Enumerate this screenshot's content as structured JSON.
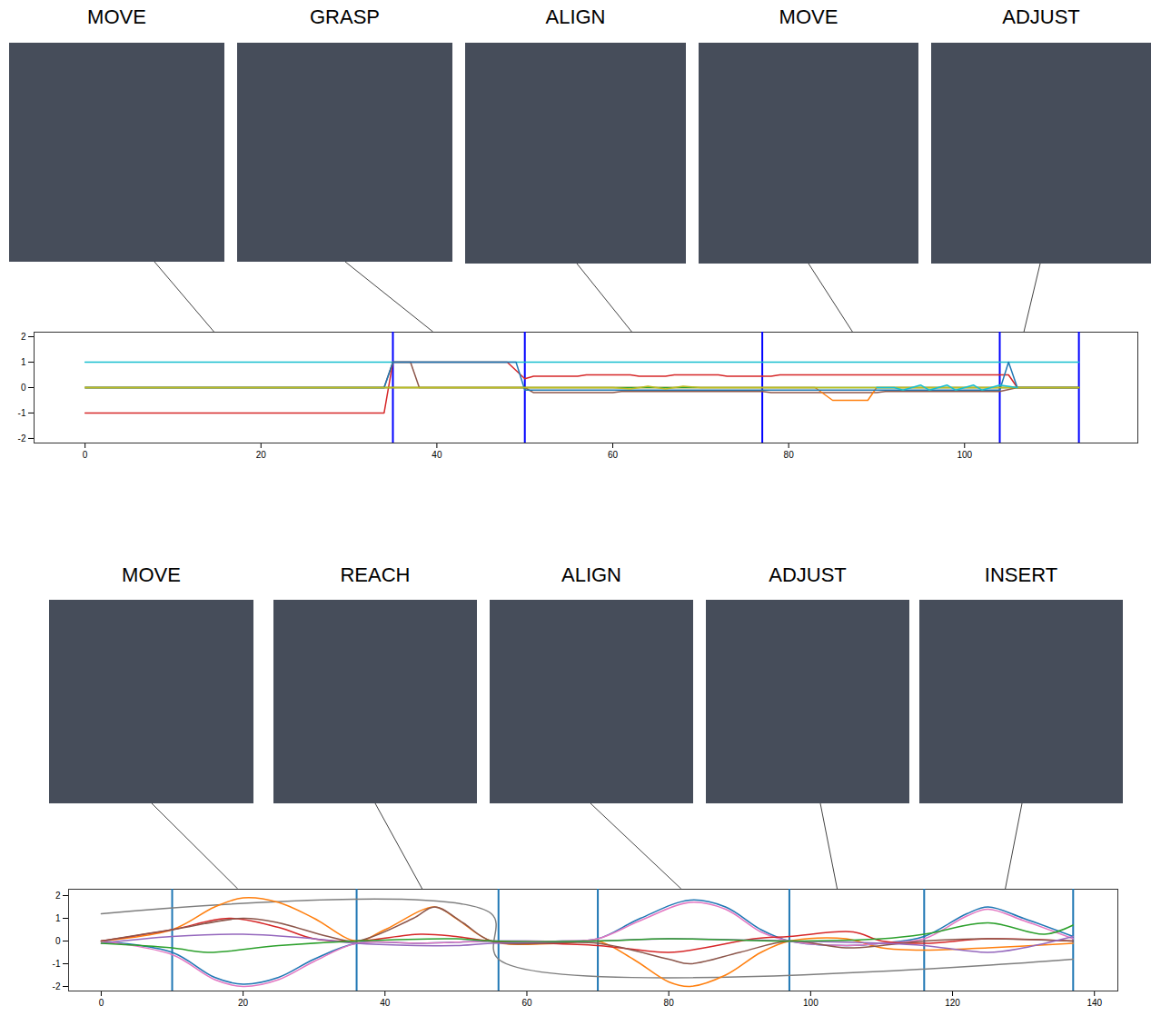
{
  "chart_data": [
    {
      "type": "line",
      "annotations": [
        {
          "text": "MOVE",
          "x": 14.7
        },
        {
          "text": "GRASP",
          "x": 39.6
        },
        {
          "text": "ALIGN",
          "x": 62.2
        },
        {
          "text": "MOVE",
          "x": 87.3
        },
        {
          "text": "ADJUST",
          "x": 106.8
        }
      ],
      "xlim": [
        -5.8,
        119.7
      ],
      "xticks": [
        0,
        20,
        40,
        60,
        80,
        100
      ],
      "ylim": [
        -2.18,
        2.18
      ],
      "yticks": [
        -2,
        -1,
        0,
        1,
        2
      ],
      "boundaries": {
        "x": [
          35,
          50,
          77,
          104,
          113
        ],
        "color": "#0000ff"
      },
      "series": [
        {
          "color": "#17becf",
          "x": [
            0,
            113
          ],
          "values": [
            1,
            1
          ]
        },
        {
          "color": "#d62728",
          "x": [
            0,
            34,
            35,
            48,
            50,
            51,
            56,
            57,
            62,
            63,
            66,
            67,
            72,
            73,
            78,
            79,
            104,
            105,
            106,
            113
          ],
          "values": [
            -1,
            -1,
            1,
            1,
            0.35,
            0.45,
            0.45,
            0.5,
            0.5,
            0.45,
            0.45,
            0.5,
            0.5,
            0.45,
            0.45,
            0.5,
            0.5,
            0.5,
            0,
            0
          ]
        },
        {
          "color": "#8c564b",
          "x": [
            0,
            34,
            35,
            37,
            38,
            50,
            51,
            60,
            61,
            77,
            78,
            90,
            91,
            104,
            106,
            113
          ],
          "values": [
            0,
            0,
            1,
            1,
            0,
            0,
            -0.2,
            -0.2,
            -0.15,
            -0.15,
            -0.2,
            -0.2,
            -0.15,
            -0.15,
            0,
            0
          ]
        },
        {
          "color": "#ff7f0e",
          "x": [
            0,
            83,
            85,
            89,
            90,
            113
          ],
          "values": [
            0,
            0,
            -0.5,
            -0.5,
            0,
            0
          ]
        },
        {
          "color": "#1f77b4",
          "x": [
            0,
            34,
            35,
            49,
            50,
            104,
            105,
            106,
            113
          ],
          "values": [
            0,
            0,
            1,
            1,
            -0.1,
            -0.1,
            1,
            0,
            0
          ]
        },
        {
          "color": "#2ca02c",
          "x": [
            0,
            113
          ],
          "values": [
            0,
            0
          ]
        },
        {
          "color": "#bcbd22",
          "x": [
            0,
            60,
            62,
            64,
            66,
            68,
            70,
            113
          ],
          "values": [
            0,
            0,
            -0.05,
            0.05,
            -0.05,
            0.05,
            0,
            0
          ]
        },
        {
          "color": "#17becf",
          "x": [
            90,
            92,
            93,
            95,
            96,
            98,
            99,
            101,
            102,
            104,
            106
          ],
          "values": [
            0,
            0,
            -0.1,
            0.1,
            -0.1,
            0.1,
            -0.1,
            0.1,
            -0.1,
            0.1,
            0
          ]
        }
      ]
    },
    {
      "type": "line",
      "annotations": [
        {
          "text": "MOVE",
          "x": 19.3
        },
        {
          "text": "REACH",
          "x": 45.3
        },
        {
          "text": "ALIGN",
          "x": 81.8
        },
        {
          "text": "ADJUST",
          "x": 103.8
        },
        {
          "text": "INSERT",
          "x": 127.5
        }
      ],
      "xlim": [
        -4.6,
        143.3
      ],
      "xticks": [
        0,
        20,
        40,
        60,
        80,
        100,
        120,
        140
      ],
      "ylim": [
        -2.2,
        2.28
      ],
      "yticks": [
        -2,
        -1,
        0,
        1,
        2
      ],
      "boundaries": {
        "x": [
          10,
          36,
          56,
          70,
          97,
          116,
          137
        ],
        "color": "#1f77b4"
      },
      "series": [
        {
          "color": "#7f7f7f",
          "x": [
            0,
            55,
            56,
            137
          ],
          "values": [
            1.2,
            1.2,
            -0.8,
            -0.8
          ]
        },
        {
          "color": "#ff7f0e",
          "x": [
            0,
            10,
            16,
            20,
            25,
            30,
            36,
            40,
            47,
            50,
            55,
            65,
            70,
            75,
            80,
            83,
            88,
            93,
            97,
            105,
            110,
            116,
            125,
            137
          ],
          "values": [
            0,
            0.5,
            1.5,
            1.9,
            1.7,
            1.0,
            0,
            0.5,
            1.5,
            1.0,
            0,
            -0.1,
            0,
            -0.8,
            -1.8,
            -2.0,
            -1.5,
            -0.5,
            0,
            0.1,
            -0.3,
            -0.4,
            -0.3,
            -0.1
          ]
        },
        {
          "color": "#1f77b4",
          "x": [
            0,
            10,
            16,
            20,
            25,
            30,
            36,
            45,
            55,
            65,
            70,
            76,
            83,
            88,
            93,
            97,
            105,
            110,
            116,
            122,
            125,
            130,
            137
          ],
          "values": [
            0,
            -0.5,
            -1.6,
            -1.9,
            -1.6,
            -0.8,
            -0.1,
            -0.1,
            0,
            0,
            0.1,
            1.0,
            1.8,
            1.5,
            0.5,
            0,
            -0.2,
            -0.1,
            0.2,
            1.2,
            1.5,
            1.0,
            0.2
          ]
        },
        {
          "color": "#e377c2",
          "x": [
            0,
            10,
            16,
            20,
            25,
            30,
            36,
            45,
            55,
            65,
            70,
            76,
            83,
            88,
            93,
            97,
            105,
            110,
            116,
            122,
            125,
            130,
            137
          ],
          "values": [
            0,
            -0.6,
            -1.7,
            -2.0,
            -1.7,
            -0.9,
            -0.1,
            -0.1,
            0,
            0,
            0.1,
            0.9,
            1.7,
            1.4,
            0.4,
            0,
            -0.2,
            -0.1,
            0.1,
            1.1,
            1.4,
            0.9,
            0.1
          ]
        },
        {
          "color": "#d62728",
          "x": [
            0,
            10,
            18,
            25,
            30,
            36,
            45,
            50,
            55,
            70,
            80,
            85,
            92,
            97,
            106,
            110,
            116,
            125,
            137
          ],
          "values": [
            0,
            0.5,
            1.0,
            0.6,
            0.1,
            0,
            0.3,
            0.2,
            0,
            -0.2,
            -0.5,
            -0.3,
            0.1,
            0.2,
            0.4,
            0,
            -0.1,
            0.1,
            0
          ]
        },
        {
          "color": "#8c564b",
          "x": [
            0,
            10,
            20,
            25,
            32,
            36,
            44,
            47,
            51,
            55,
            70,
            80,
            83,
            90,
            97,
            105,
            110,
            116,
            125,
            137
          ],
          "values": [
            0,
            0.5,
            1.0,
            0.8,
            0.2,
            0,
            1.0,
            1.5,
            0.8,
            0,
            -0.1,
            -0.8,
            -1.0,
            -0.5,
            0,
            -0.3,
            -0.2,
            0,
            0.1,
            0
          ]
        },
        {
          "color": "#9467bd",
          "x": [
            0,
            10,
            20,
            30,
            36,
            50,
            55,
            70,
            80,
            97,
            110,
            116,
            125,
            130,
            137
          ],
          "values": [
            -0.1,
            0.2,
            0.3,
            0.1,
            -0.1,
            -0.2,
            -0.1,
            0,
            0.1,
            0,
            -0.1,
            -0.2,
            -0.5,
            -0.3,
            0.2
          ]
        },
        {
          "color": "#2ca02c",
          "x": [
            0,
            10,
            15,
            25,
            36,
            50,
            55,
            70,
            80,
            97,
            110,
            116,
            125,
            133,
            137
          ],
          "values": [
            -0.1,
            -0.3,
            -0.5,
            -0.2,
            0,
            0.1,
            0,
            0,
            0.1,
            0,
            0.1,
            0.3,
            0.8,
            0.3,
            0.7
          ]
        }
      ]
    }
  ]
}
